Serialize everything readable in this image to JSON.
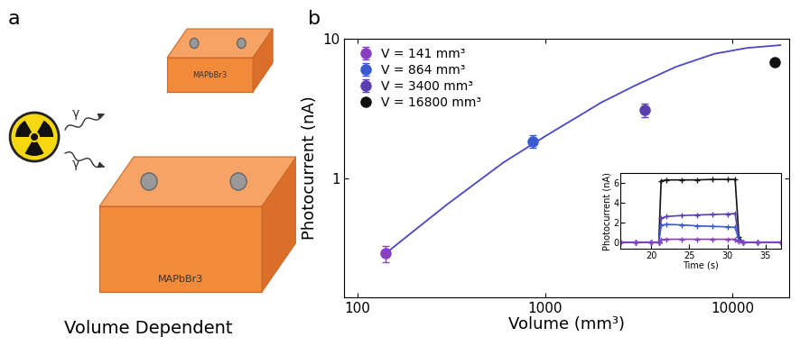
{
  "panel_labels": [
    "a",
    "b"
  ],
  "diagram": {
    "source_labels": [
      "γ",
      "γ"
    ],
    "samples": [
      {
        "label": "MAPbBr3"
      },
      {
        "label": "MAPbBr3"
      }
    ],
    "caption": "Volume Dependent"
  },
  "chart_data": [
    {
      "type": "scatter",
      "log": true,
      "x_label": "Volume (mm³)",
      "y_label": "Photocurrent (nA)",
      "xlim": [
        85,
        20000
      ],
      "ylim": [
        0.14,
        10
      ],
      "xticks": [
        100,
        1000,
        10000
      ],
      "yticks": [
        1,
        10
      ],
      "legend": "upper left",
      "series": [
        {
          "name": "V = 141 mm³",
          "color": "#8a3fc0",
          "marker": "o",
          "x": [
            141
          ],
          "values": [
            0.29
          ],
          "errors": [
            0.04
          ]
        },
        {
          "name": "V = 864 mm³",
          "color": "#3a5ad0",
          "marker": "o",
          "x": [
            864
          ],
          "values": [
            1.85
          ],
          "errors": [
            0.2
          ]
        },
        {
          "name": "V = 3400 mm³",
          "color": "#5a3fb0",
          "marker": "o",
          "x": [
            3400
          ],
          "values": [
            3.1
          ],
          "errors": [
            0.35
          ]
        },
        {
          "name": "V = 16800 mm³",
          "color": "#111111",
          "marker": "o",
          "x": [
            16800
          ],
          "values": [
            6.8
          ]
        },
        {
          "type": "line",
          "color": "#4848c8",
          "line_style": "solid",
          "x": [
            141,
            300,
            600,
            1000,
            2000,
            3000,
            5000,
            8000,
            12000,
            18000
          ],
          "values": [
            0.29,
            0.65,
            1.3,
            2.0,
            3.5,
            4.6,
            6.3,
            7.8,
            8.6,
            9.0
          ]
        }
      ]
    },
    {
      "type": "line",
      "x_label": "Time (s)",
      "y_label": "Photocurrent (nA)",
      "xlim": [
        16,
        37
      ],
      "ylim": [
        -0.7,
        7
      ],
      "xticks": [
        20,
        25,
        30,
        35
      ],
      "yticks": [
        0,
        2,
        4,
        6
      ],
      "x": [
        16,
        18,
        20,
        21,
        21.3,
        22,
        24,
        26,
        28,
        30,
        31,
        31.5,
        32,
        34,
        37
      ],
      "series": [
        {
          "color": "#111111",
          "marker": "+",
          "values": [
            0,
            0,
            0,
            0,
            6.2,
            6.3,
            6.3,
            6.3,
            6.35,
            6.35,
            6.35,
            0.5,
            0,
            0,
            0
          ]
        },
        {
          "color": "#5a3fb0",
          "marker": "+",
          "values": [
            0,
            0,
            0,
            0,
            2.4,
            2.6,
            2.7,
            2.75,
            2.8,
            2.85,
            2.9,
            0.3,
            0,
            0,
            0
          ]
        },
        {
          "color": "#3a5ad0",
          "marker": "+",
          "values": [
            0,
            0,
            0,
            0,
            1.7,
            1.8,
            1.75,
            1.65,
            1.6,
            1.55,
            1.5,
            0.2,
            0,
            0,
            0
          ]
        },
        {
          "color": "#8a3fc0",
          "marker": "+",
          "values": [
            0,
            0,
            0,
            0,
            0.25,
            0.3,
            0.3,
            0.3,
            0.3,
            0.3,
            0.3,
            0.05,
            0,
            0,
            0
          ]
        }
      ]
    }
  ]
}
